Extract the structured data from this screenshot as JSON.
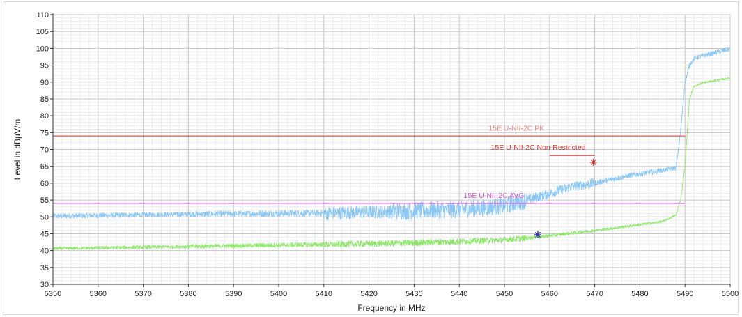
{
  "chart_data": {
    "type": "line",
    "title": "",
    "xlabel": "Frequency in MHz",
    "ylabel": "Level in dBµV/m",
    "xlim": [
      5350,
      5500
    ],
    "ylim": [
      30,
      110
    ],
    "x_ticks": [
      "5350",
      "5360",
      "5370",
      "5380",
      "5390",
      "5400",
      "5410",
      "5420",
      "5430",
      "5440",
      "5450",
      "5460",
      "5470",
      "5480",
      "5490",
      "5500"
    ],
    "y_ticks": [
      "110",
      "105",
      "100",
      "95",
      "90",
      "85",
      "80",
      "75",
      "70",
      "65",
      "60",
      "55",
      "50",
      "45",
      "40",
      "35",
      "30"
    ],
    "grid": true,
    "series": [
      {
        "color": "#8cc8f5",
        "noise": [
          0.8,
          0.8,
          0.9,
          1.0,
          2.0,
          2.6,
          2.6,
          1.5,
          0.8,
          0.7
        ],
        "x": [
          5350,
          5360,
          5370,
          5380,
          5390,
          5400,
          5410,
          5420,
          5430,
          5440,
          5445,
          5450,
          5455,
          5460,
          5465,
          5470,
          5475,
          5480,
          5485,
          5488,
          5489,
          5490,
          5491,
          5492,
          5494,
          5497,
          5500
        ],
        "values": [
          50.2,
          50.4,
          50.6,
          50.8,
          50.9,
          51.0,
          51.1,
          51.4,
          51.8,
          52.2,
          52.6,
          53.3,
          55.0,
          57.0,
          59.0,
          60.0,
          61.5,
          62.8,
          63.8,
          64.5,
          75.0,
          90.0,
          95.0,
          97.0,
          97.8,
          98.8,
          99.8
        ]
      },
      {
        "color": "#8de86a",
        "noise": [
          0.5,
          0.5,
          0.6,
          0.7,
          0.9,
          1.0,
          0.9,
          0.5,
          0.4,
          0.3
        ],
        "x": [
          5350,
          5360,
          5370,
          5380,
          5390,
          5400,
          5410,
          5420,
          5430,
          5440,
          5450,
          5455,
          5460,
          5465,
          5470,
          5475,
          5480,
          5485,
          5488,
          5489,
          5490,
          5491,
          5492,
          5494,
          5497,
          5500
        ],
        "values": [
          40.6,
          40.8,
          41.0,
          41.2,
          41.4,
          41.6,
          41.8,
          42.0,
          42.3,
          42.7,
          43.2,
          43.7,
          44.4,
          45.2,
          46.0,
          46.8,
          47.7,
          48.6,
          50.5,
          55.0,
          65.0,
          85.0,
          88.8,
          89.8,
          90.5,
          91.2
        ]
      }
    ],
    "limit_lines": [
      {
        "label": "15E U-NII-2C PK",
        "x": [
          5350,
          5490
        ],
        "y": 74,
        "color": "#e25a5a",
        "label_color": "#e98787",
        "label_x": 5446.5,
        "label_y": 75.6
      },
      {
        "label": "15E U-NII-2C AVG",
        "x": [
          5350,
          5490
        ],
        "y": 54,
        "color": "#d757d7",
        "label_color": "#d757d7",
        "label_x": 5441,
        "label_y": 55.6
      },
      {
        "label": "15E U-NII-2C Non-Restricted",
        "x": [
          5460,
          5470
        ],
        "y": 68.2,
        "color": "#d84040",
        "label_color": "#d62e2e",
        "label_x": 5447,
        "label_y": 69.9
      }
    ],
    "markers": [
      {
        "x": 5469.7,
        "y": 66.2,
        "color": "#d83232",
        "symbol": "asterisk"
      },
      {
        "x": 5457.4,
        "y": 44.7,
        "color": "#2a2aa8",
        "symbol": "asterisk"
      }
    ]
  }
}
